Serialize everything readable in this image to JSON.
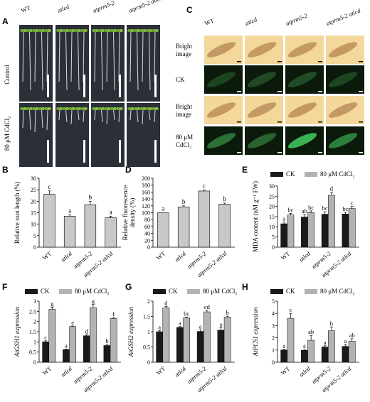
{
  "figure": {
    "panel_letters": [
      "A",
      "B",
      "C",
      "D",
      "E",
      "F",
      "G",
      "H"
    ],
    "genotypes": [
      "WT",
      "atlcd",
      "atprm5-2",
      "atprm5-2 atlcd"
    ],
    "panelA": {
      "col_labels": [
        "WT",
        "atlcd",
        "atprm5-2",
        "atprm5-2 atlcd"
      ],
      "row_labels": [
        "Control",
        "80 μM CdCl₂"
      ]
    },
    "panelC": {
      "col_labels": [
        "WT",
        "atlcd",
        "atprm5-2",
        "atprm5-2 atlcd"
      ],
      "row_labels": [
        "Bright image",
        "CK",
        "Bright image",
        "80 μM CdCl₂"
      ],
      "row_label_lines": [
        [
          "Bright",
          "image"
        ],
        [
          "CK"
        ],
        [
          "Bright",
          "image"
        ],
        [
          "80 μM",
          "CdCl₂"
        ]
      ]
    },
    "legend": {
      "ck": "CK",
      "cd": "80 μM CdCl₂"
    },
    "colors": {
      "ck": "#1a1a1a",
      "cd": "#b3b3b3",
      "bar": "#c8c8c8",
      "seedling_bg": "#2b3038",
      "bright_bg": "#f4d79a",
      "fluor_bg": "#0c1a0c"
    }
  },
  "chart_data": [
    {
      "panel": "B",
      "type": "bar",
      "ylabel": "Relative root length (%)",
      "ylim": [
        0,
        30
      ],
      "yticks": [
        0,
        5,
        10,
        15,
        20,
        25,
        30
      ],
      "categories": [
        "WT",
        "atlcd",
        "atprm5-2",
        "atprm5-2 atlcd"
      ],
      "values": [
        23,
        13.5,
        18.5,
        12.8
      ],
      "errors": [
        1.5,
        0.5,
        1.5,
        0.7
      ],
      "letters": [
        "c",
        "a",
        "b",
        "a"
      ]
    },
    {
      "panel": "D",
      "type": "bar",
      "ylabel": "Relative fluorescence density (%)",
      "ylabel_lines": [
        "Relative fluorescence",
        "density (%)"
      ],
      "ylim": [
        0,
        200
      ],
      "yticks": [
        0,
        20,
        40,
        60,
        80,
        100,
        120,
        140,
        160,
        180,
        200
      ],
      "categories": [
        "WT",
        "atlcd",
        "atprm5-2",
        "atprm5-2 atlcd"
      ],
      "values": [
        100,
        117,
        163,
        125
      ],
      "errors": [
        0,
        3,
        3,
        3
      ],
      "letters": [
        "a",
        "b",
        "c",
        "b"
      ]
    },
    {
      "panel": "E",
      "type": "bar",
      "ylabel": "MDA content (nM g⁻¹ FW)",
      "ylim": [
        0,
        30
      ],
      "yticks": [
        0,
        5,
        10,
        15,
        20,
        25,
        30
      ],
      "categories": [
        "WT",
        "atlcd",
        "atprm5-2",
        "atprm5-2 atlcd"
      ],
      "series": [
        {
          "name": "CK",
          "values": [
            11.5,
            14.8,
            16.2,
            16.3
          ],
          "errors": [
            0.8,
            1.2,
            1.2,
            0.8
          ],
          "letters": [
            "a",
            "ab",
            "bc",
            "bc"
          ]
        },
        {
          "name": "80 μM CdCl₂",
          "values": [
            15.8,
            17.0,
            25.5,
            19.0
          ],
          "errors": [
            0.8,
            0.8,
            1.5,
            1.0
          ],
          "letters": [
            "bc",
            "bc",
            "d",
            "c"
          ]
        }
      ]
    },
    {
      "panel": "F",
      "type": "bar",
      "ylabel": "AtGSH1 expression",
      "ylim": [
        0,
        3
      ],
      "yticks": [
        0,
        0.5,
        1,
        1.5,
        2,
        2.5,
        3
      ],
      "categories": [
        "WT",
        "atlcd",
        "atprm5-2",
        "atprm5-2 atlcd"
      ],
      "series": [
        {
          "name": "CK",
          "values": [
            1.0,
            0.62,
            1.3,
            0.82
          ],
          "errors": [
            0.05,
            0.03,
            0.05,
            0.05
          ],
          "letters": [
            "c",
            "a",
            "d",
            "b"
          ]
        },
        {
          "name": "80 μM CdCl₂",
          "values": [
            2.6,
            1.75,
            2.68,
            2.15
          ],
          "errors": [
            0.1,
            0.03,
            0.15,
            0.05
          ],
          "letters": [
            "g",
            "e",
            "g",
            "f"
          ]
        }
      ]
    },
    {
      "panel": "G",
      "type": "bar",
      "ylabel": "AtGSH2 expression",
      "ylim": [
        0,
        2
      ],
      "yticks": [
        0,
        0.5,
        1,
        1.5,
        2
      ],
      "categories": [
        "WT",
        "atlcd",
        "atprm5-2",
        "atprm5-2 atlcd"
      ],
      "series": [
        {
          "name": "CK",
          "values": [
            1.0,
            1.14,
            1.01,
            1.05
          ],
          "errors": [
            0.03,
            0.03,
            0.05,
            0.08
          ],
          "letters": [
            "a",
            "a",
            "a",
            "a"
          ]
        },
        {
          "name": "80 μM CdCl₂",
          "values": [
            1.78,
            1.45,
            1.65,
            1.48
          ],
          "errors": [
            0.05,
            0.03,
            0.05,
            0.03
          ],
          "letters": [
            "d",
            "bc",
            "cd",
            "b"
          ]
        }
      ]
    },
    {
      "panel": "H",
      "type": "bar",
      "ylabel": "AtPCS1 expression",
      "ylim": [
        0,
        5
      ],
      "yticks": [
        0,
        1,
        2,
        3,
        4,
        5
      ],
      "categories": [
        "WT",
        "atlcd",
        "atprm5-2",
        "atprm5-2 atlcd"
      ],
      "series": [
        {
          "name": "CK",
          "values": [
            1.0,
            0.97,
            1.25,
            1.3
          ],
          "errors": [
            0.05,
            0.1,
            0.1,
            0.15
          ],
          "letters": [
            "a",
            "a",
            "a",
            "a"
          ]
        },
        {
          "name": "80 μM CdCl₂",
          "values": [
            3.6,
            1.8,
            2.58,
            1.72
          ],
          "errors": [
            0.4,
            0.4,
            0.3,
            0.2
          ],
          "letters": [
            "c",
            "ab",
            "b",
            "ab"
          ]
        }
      ]
    }
  ]
}
